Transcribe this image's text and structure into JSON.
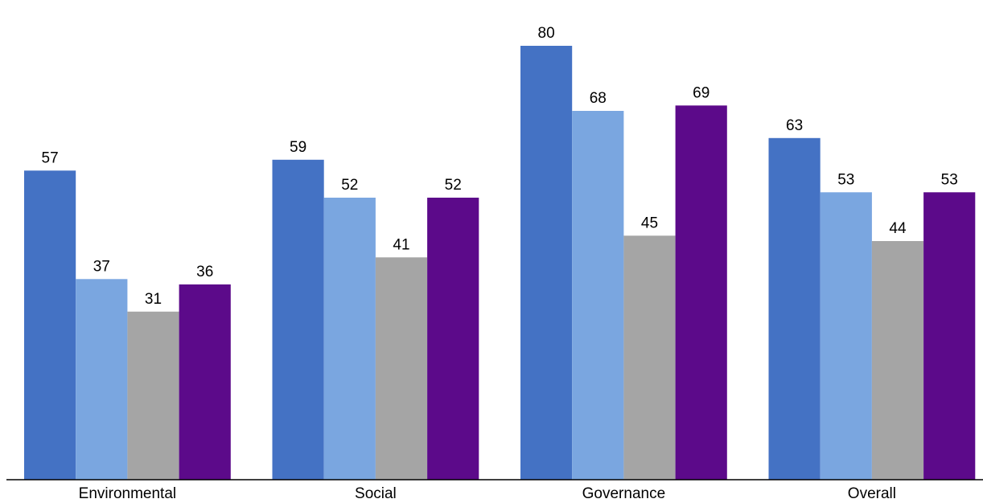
{
  "chart_data": {
    "type": "bar",
    "categories": [
      "Environmental",
      "Social",
      "Governance",
      "Overall"
    ],
    "series": [
      {
        "color": "#4472C4",
        "values": [
          57,
          59,
          80,
          63
        ]
      },
      {
        "color": "#7AA6E0",
        "values": [
          37,
          52,
          68,
          53
        ]
      },
      {
        "color": "#A5A5A5",
        "values": [
          31,
          41,
          45,
          44
        ]
      },
      {
        "color": "#5C0A8A",
        "values": [
          36,
          52,
          69,
          53
        ]
      }
    ],
    "title": "",
    "xlabel": "",
    "ylabel": "",
    "ylim": [
      0,
      85
    ],
    "grid": false,
    "legend": "none",
    "data_labels": true
  }
}
